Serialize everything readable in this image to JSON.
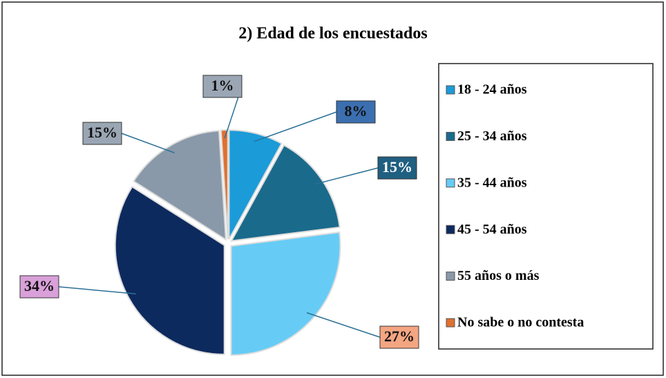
{
  "chart_data": {
    "type": "pie",
    "title": "2) Edad de los encuestados",
    "categories": [
      "18 - 24 años",
      "25 - 34 años",
      "35 - 44 años",
      "45 - 54 años",
      "55 años o más",
      "No sabe o no contesta"
    ],
    "values": [
      8,
      15,
      27,
      34,
      15,
      1
    ],
    "value_labels": [
      "8%",
      "15%",
      "27%",
      "34%",
      "15%",
      "1%"
    ],
    "colors": [
      "#1b9bd8",
      "#1a6a8c",
      "#66ccf5",
      "#0d2a5e",
      "#8a99a9",
      "#e0702f"
    ],
    "legend": "right"
  }
}
